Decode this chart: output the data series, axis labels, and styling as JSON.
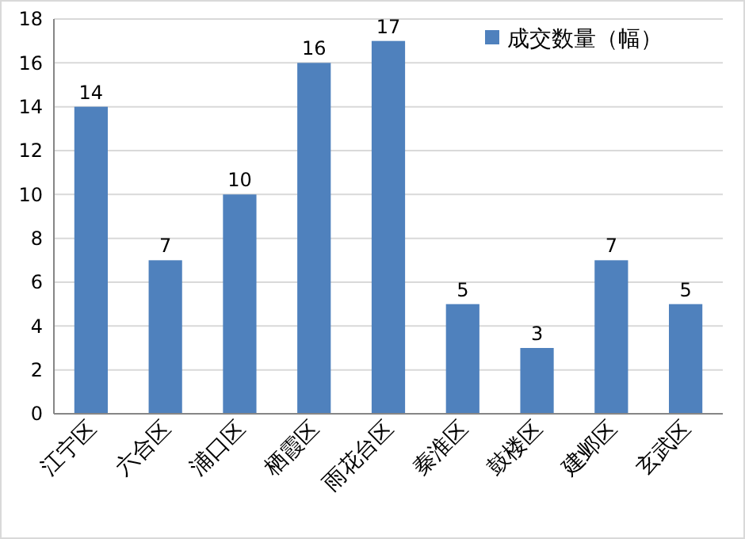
{
  "chart_data": {
    "type": "bar",
    "categories": [
      "江宁区",
      "六合区",
      "浦口区",
      "栖霞区",
      "雨花台区",
      "秦淮区",
      "鼓楼区",
      "建邺区",
      "玄武区"
    ],
    "series": [
      {
        "name": "成交数量（幅）",
        "color": "#4f81bd",
        "values": [
          14,
          7,
          10,
          16,
          17,
          5,
          3,
          7,
          5
        ]
      }
    ],
    "ylim": [
      0,
      18
    ],
    "yticks": [
      0,
      2,
      4,
      6,
      8,
      10,
      12,
      14,
      16,
      18
    ],
    "grid": "y",
    "legend": "top right",
    "data_labels": true
  }
}
